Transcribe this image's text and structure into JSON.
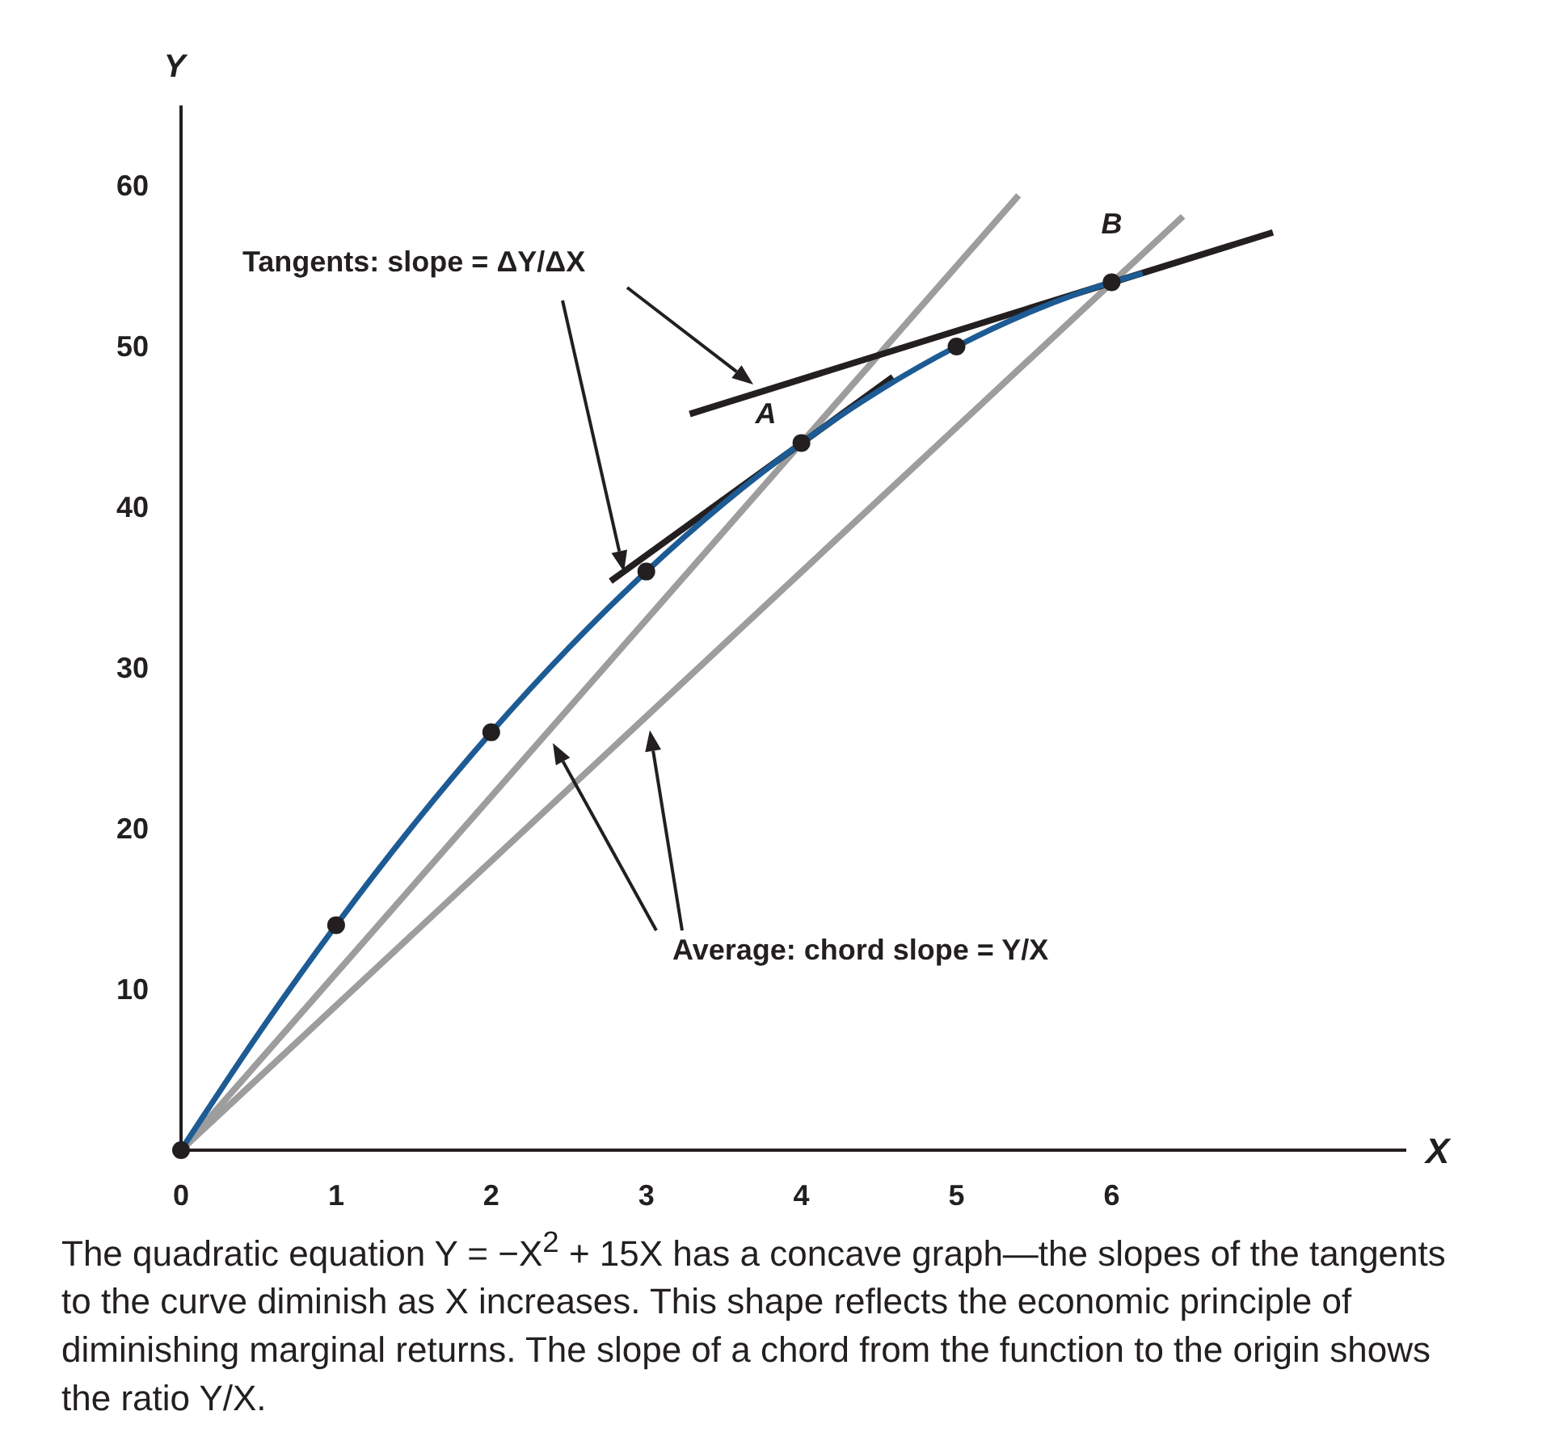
{
  "chart_data": {
    "type": "line",
    "xlabel": "X",
    "ylabel": "Y",
    "xlim": [
      0,
      7.9
    ],
    "ylim": [
      0,
      65
    ],
    "xticks": [
      0,
      1,
      2,
      3,
      4,
      5,
      6
    ],
    "yticks": [
      10,
      20,
      30,
      40,
      50,
      60
    ],
    "grid": false,
    "series": [
      {
        "type": "line",
        "color": "#1d5b94",
        "x": [
          0,
          0.5,
          1,
          1.5,
          2,
          2.5,
          3,
          3.5,
          4,
          4.5,
          5,
          5.5,
          6,
          6.2
        ],
        "values": [
          0,
          7.25,
          14,
          20.25,
          26,
          31.25,
          36,
          40.25,
          44,
          47.25,
          50,
          52.25,
          54,
          54.56
        ]
      },
      {
        "type": "line",
        "color": "#9d9d9d",
        "x": [
          0,
          5.4
        ],
        "values": [
          0,
          59.4
        ]
      },
      {
        "type": "line",
        "color": "#9d9d9d",
        "x": [
          0,
          6.46
        ],
        "values": [
          0,
          58.1
        ]
      },
      {
        "type": "line",
        "color": "#231f20",
        "x": [
          2.77,
          4.59
        ],
        "values": [
          35.4,
          48.1
        ]
      },
      {
        "type": "line",
        "color": "#231f20",
        "x": [
          3.28,
          7.04
        ],
        "values": [
          45.8,
          57.1
        ]
      },
      {
        "type": "scatter",
        "marker": "circle",
        "color": "#231f20",
        "x": [
          0,
          1,
          2,
          3,
          4,
          5,
          6
        ],
        "values": [
          0,
          14,
          26,
          36,
          44,
          50,
          54
        ]
      }
    ],
    "annotations": [
      "Tangents: slope = ΔY/ΔX",
      "Average: chord slope = Y/X",
      {
        "text": "A",
        "x": 4,
        "y": 44
      },
      {
        "text": "B",
        "x": 6,
        "y": 54
      },
      "The quadratic equation Y = −X$^{2}$ + 15X has a concave graph—the slopes of the tangents to the curve diminish as X increases. This shape reflects the economic principle of diminishing marginal returns. The slope of a chord from the function to the origin shows the ratio Y/X."
    ]
  }
}
